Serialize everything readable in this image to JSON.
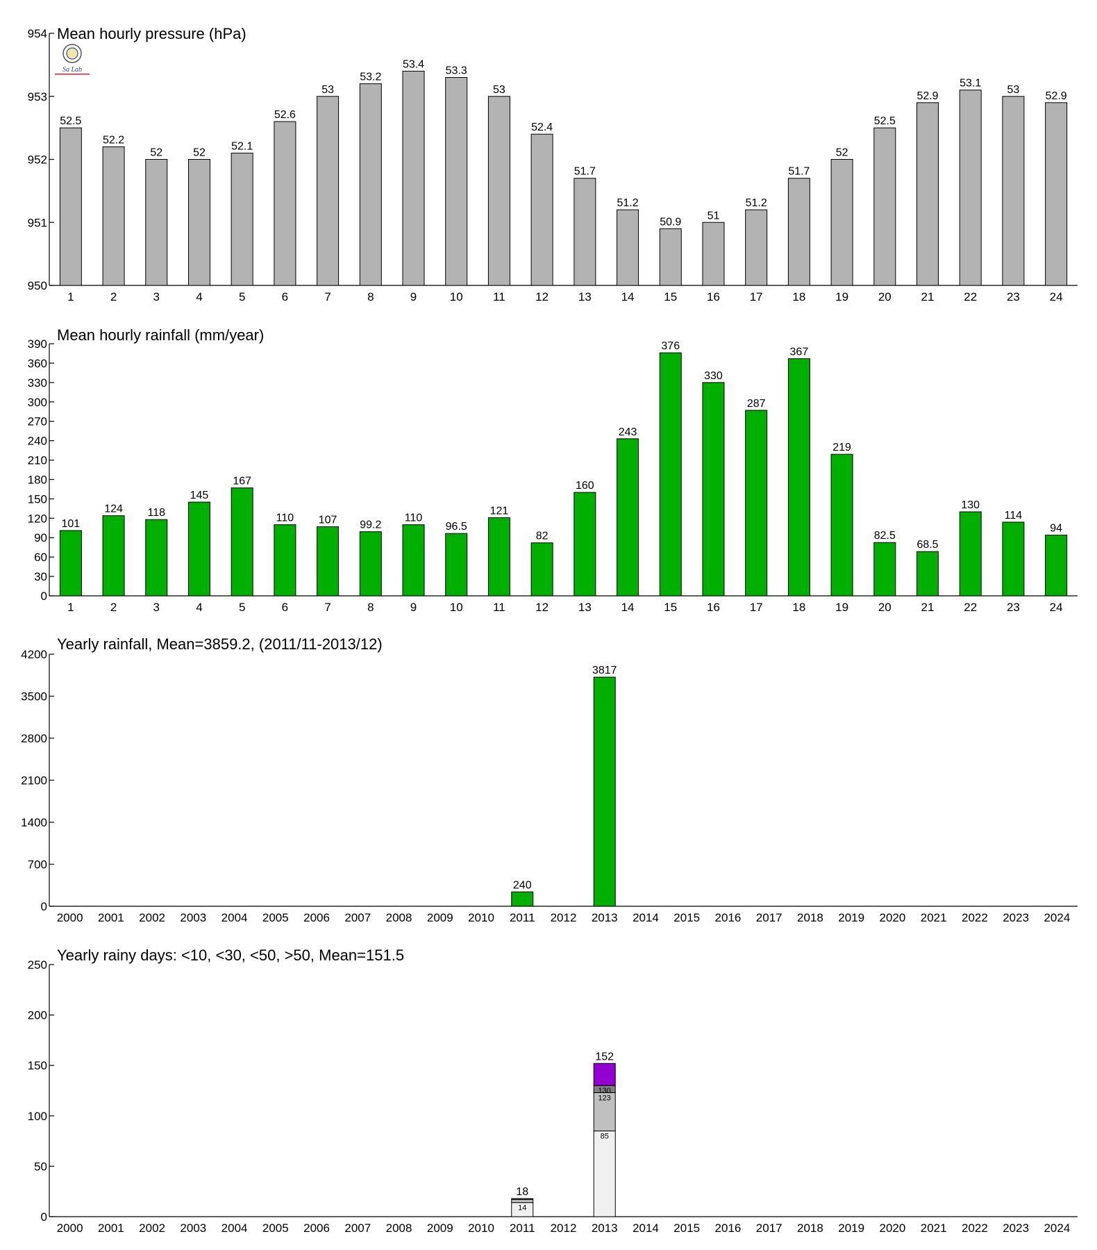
{
  "logo": {
    "letters": "Sa Lab"
  },
  "chart_data": [
    {
      "type": "bar",
      "title": "Mean hourly pressure (hPa)",
      "categories": [
        "1",
        "2",
        "3",
        "4",
        "5",
        "6",
        "7",
        "8",
        "9",
        "10",
        "11",
        "12",
        "13",
        "14",
        "15",
        "16",
        "17",
        "18",
        "19",
        "20",
        "21",
        "22",
        "23",
        "24"
      ],
      "values": [
        952.5,
        952.2,
        952.0,
        952.0,
        952.1,
        952.6,
        953.0,
        953.2,
        953.4,
        953.3,
        953.0,
        952.4,
        951.7,
        951.2,
        950.9,
        951.0,
        951.2,
        951.7,
        952.0,
        952.5,
        952.9,
        953.1,
        953.0,
        952.9
      ],
      "data_labels": [
        "52.5",
        "52.2",
        "52",
        "52",
        "52.1",
        "52.6",
        "53",
        "53.2",
        "53.4",
        "53.3",
        "53",
        "52.4",
        "51.7",
        "51.2",
        "50.9",
        "51",
        "51.2",
        "51.7",
        "52",
        "52.5",
        "52.9",
        "53.1",
        "53",
        "52.9"
      ],
      "ylim": [
        950,
        954
      ],
      "yticks": [
        950,
        951,
        952,
        953,
        954
      ],
      "grid": false,
      "color": "#b3b3b3"
    },
    {
      "type": "bar",
      "title": "Mean hourly rainfall (mm/year)",
      "categories": [
        "1",
        "2",
        "3",
        "4",
        "5",
        "6",
        "7",
        "8",
        "9",
        "10",
        "11",
        "12",
        "13",
        "14",
        "15",
        "16",
        "17",
        "18",
        "19",
        "20",
        "21",
        "22",
        "23",
        "24"
      ],
      "values": [
        101,
        124,
        118,
        145,
        167,
        110,
        107,
        99.2,
        110,
        96.5,
        121,
        82,
        160,
        243,
        376,
        330,
        287,
        367,
        219,
        82.5,
        68.5,
        130,
        114,
        94
      ],
      "data_labels": [
        "101",
        "124",
        "118",
        "145",
        "167",
        "110",
        "107",
        "99.2",
        "110",
        "96.5",
        "121",
        "82",
        "160",
        "243",
        "376",
        "330",
        "287",
        "367",
        "219",
        "82.5",
        "68.5",
        "130",
        "114",
        "94"
      ],
      "ylim": [
        0,
        390
      ],
      "yticks": [
        0,
        30,
        60,
        90,
        120,
        150,
        180,
        210,
        240,
        270,
        300,
        330,
        360,
        390
      ],
      "grid": false,
      "color": "#00b000"
    },
    {
      "type": "bar",
      "title": "Yearly rainfall, Mean=3859.2, (2011/11-2013/12)",
      "categories": [
        "2000",
        "2001",
        "2002",
        "2003",
        "2004",
        "2005",
        "2006",
        "2007",
        "2008",
        "2009",
        "2010",
        "2011",
        "2012",
        "2013",
        "2014",
        "2015",
        "2016",
        "2017",
        "2018",
        "2019",
        "2020",
        "2021",
        "2022",
        "2023",
        "2024"
      ],
      "values": [
        0,
        0,
        0,
        0,
        0,
        0,
        0,
        0,
        0,
        0,
        0,
        240,
        0,
        3817,
        0,
        0,
        0,
        0,
        0,
        0,
        0,
        0,
        0,
        0,
        0
      ],
      "data_labels": [
        "",
        "",
        "",
        "",
        "",
        "",
        "",
        "",
        "",
        "",
        "",
        "240",
        "",
        "3817",
        "",
        "",
        "",
        "",
        "",
        "",
        "",
        "",
        "",
        "",
        ""
      ],
      "ylim": [
        0,
        4200
      ],
      "yticks": [
        0,
        700,
        1400,
        2100,
        2800,
        3500,
        4200
      ],
      "grid": false,
      "color": "#00b000"
    },
    {
      "type": "bar",
      "stacked": true,
      "title": "Yearly rainy days: <10, <30, <50, >50, Mean=151.5",
      "categories": [
        "2000",
        "2001",
        "2002",
        "2003",
        "2004",
        "2005",
        "2006",
        "2007",
        "2008",
        "2009",
        "2010",
        "2011",
        "2012",
        "2013",
        "2014",
        "2015",
        "2016",
        "2017",
        "2018",
        "2019",
        "2020",
        "2021",
        "2022",
        "2023",
        "2024"
      ],
      "ylim": [
        0,
        250
      ],
      "yticks": [
        0,
        50,
        100,
        150,
        200,
        250
      ],
      "grid": false,
      "segment_colors": [
        "#f0f0f0",
        "#c0c0c0",
        "#808080",
        "#9400d3"
      ],
      "stacks": [
        {
          "category": "2011",
          "cumulative": [
            14,
            17,
            18,
            18
          ],
          "segment_labels": [
            "14",
            "",
            "",
            ""
          ],
          "total_label": "18"
        },
        {
          "category": "2013",
          "cumulative": [
            85,
            123,
            130,
            152
          ],
          "segment_labels": [
            "85",
            "123",
            "130",
            ""
          ],
          "total_label": "152"
        }
      ]
    }
  ]
}
